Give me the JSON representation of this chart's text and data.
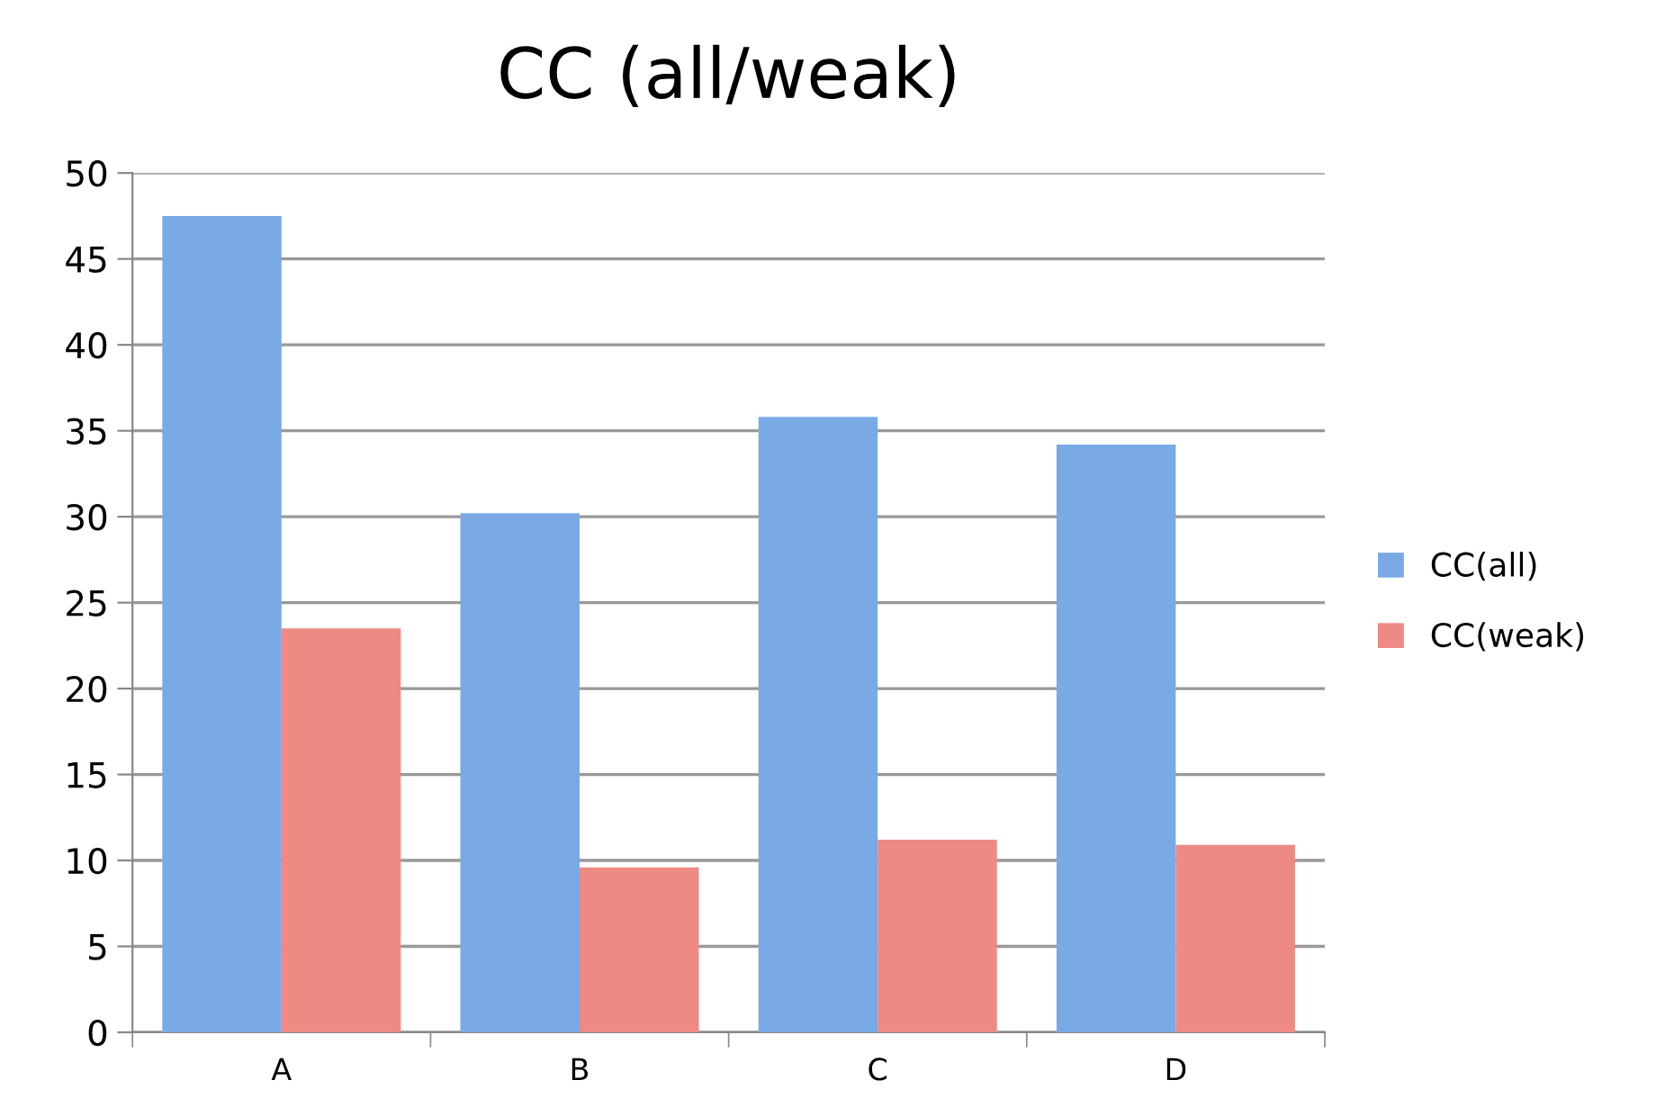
{
  "chart_data": {
    "type": "bar",
    "title": "CC (all/weak)",
    "categories": [
      "A",
      "B",
      "C",
      "D"
    ],
    "series": [
      {
        "name": "CC(all)",
        "color": "#7aaae6",
        "values": [
          47.5,
          30.2,
          35.8,
          34.2
        ]
      },
      {
        "name": "CC(weak)",
        "color": "#ee8a84",
        "values": [
          23.5,
          9.6,
          11.2,
          10.9
        ]
      }
    ],
    "ylim": [
      0,
      50
    ],
    "yticks": [
      0,
      5,
      10,
      15,
      20,
      25,
      30,
      35,
      40,
      45,
      50
    ],
    "grid": "y",
    "legend": "right"
  }
}
